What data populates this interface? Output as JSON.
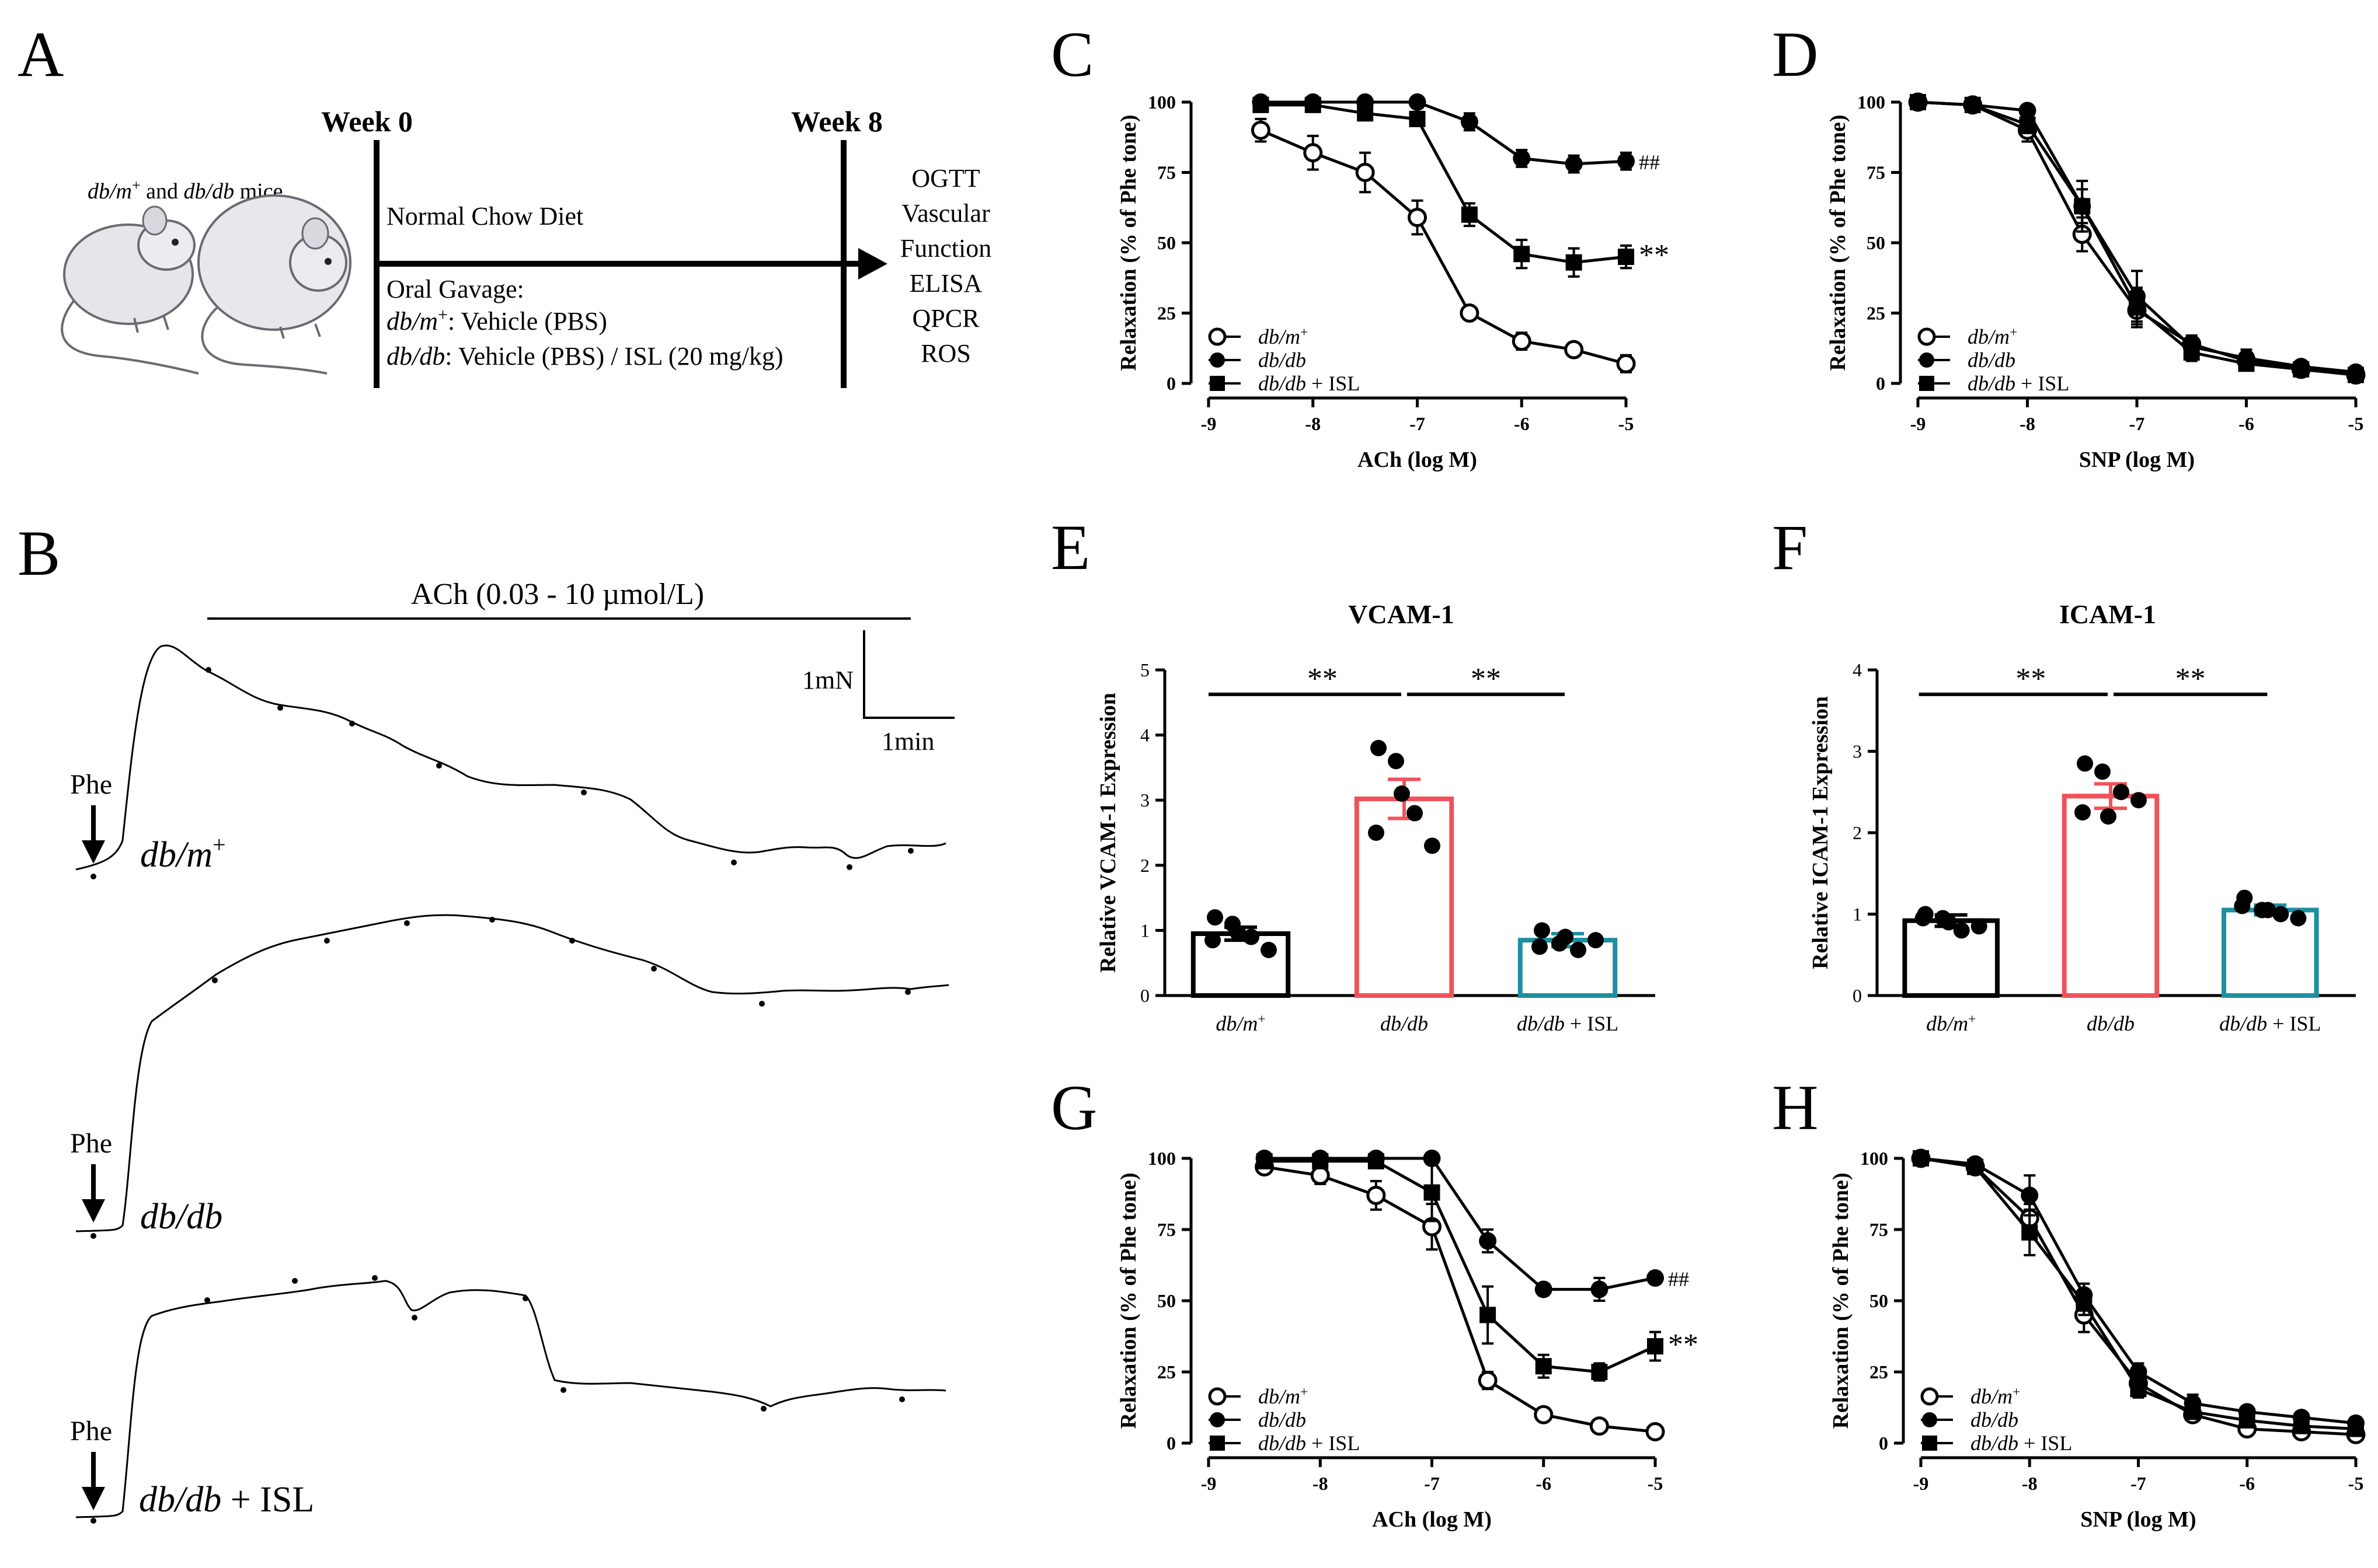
{
  "panels": {
    "A": {
      "letter": "A",
      "mice_label_a": "db/m",
      "mice_label_a_sup": "+",
      "mice_label_and": " and ",
      "mice_label_b": "db/db",
      "mice_label_end": " mice",
      "week0": "Week 0",
      "week8": "Week 8",
      "diet": "Normal Chow Diet",
      "gavage": "Oral Gavage:",
      "line1_italic": "db/m",
      "line1_sup": "+",
      "line1_rest": ": Vehicle (PBS)",
      "line2_italic": "db/db",
      "line2_rest": ": Vehicle (PBS) / ISL (20 mg/kg)",
      "outcomes": [
        "OGTT",
        "Vascular",
        "Function",
        "ELISA",
        "QPCR",
        "ROS"
      ]
    },
    "B": {
      "letter": "B",
      "ach_label": "ACh (0.03 - 10 µmol/L)",
      "scale_force": "1mN",
      "scale_time": "1min",
      "phe": "Phe",
      "trace1_a": "db/m",
      "trace1_sup": "+",
      "trace2": "db/db",
      "trace3_a": "db/db",
      "trace3_b": " + ISL"
    },
    "C": {
      "letter": "C"
    },
    "D": {
      "letter": "D"
    },
    "E": {
      "letter": "E"
    },
    "F": {
      "letter": "F"
    },
    "G": {
      "letter": "G"
    },
    "H": {
      "letter": "H"
    }
  },
  "legend": {
    "s1_italic": "db/m",
    "s1_sup": "+",
    "s2_italic": "db/db",
    "s3_italic": "db/db",
    "s3_rest": " + ISL"
  },
  "chart_data": [
    {
      "id": "C",
      "type": "line",
      "xlabel": "ACh (log M)",
      "ylabel": "Relaxation (% of Phe tone)",
      "xlim": [
        -9,
        -5
      ],
      "ylim": [
        0,
        100
      ],
      "xticks": [
        "-9",
        "-8",
        "-7",
        "-6",
        "-5"
      ],
      "yticks": [
        "0",
        "25",
        "50",
        "75",
        "100"
      ],
      "x": [
        -8.5,
        -8,
        -7.5,
        -7,
        -6.5,
        -6,
        -5.5,
        -5
      ],
      "series": [
        {
          "name": "db/m+",
          "marker": "open-circle",
          "values": [
            90,
            82,
            75,
            59,
            25,
            15,
            12,
            7
          ],
          "err": [
            4,
            6,
            7,
            6,
            2,
            3,
            2,
            3
          ]
        },
        {
          "name": "db/db",
          "marker": "filled-circle",
          "values": [
            100,
            100,
            100,
            100,
            93,
            80,
            78,
            79
          ],
          "err": [
            1,
            1,
            1,
            1,
            3,
            3,
            3,
            3
          ],
          "annotation": "##"
        },
        {
          "name": "db/db + ISL",
          "marker": "filled-square",
          "values": [
            99,
            99,
            96,
            94,
            60,
            46,
            43,
            45
          ],
          "err": [
            1,
            1,
            2,
            2,
            4,
            5,
            5,
            4
          ],
          "annotation": "**"
        }
      ]
    },
    {
      "id": "D",
      "type": "line",
      "xlabel": "SNP (log M)",
      "ylabel": "Relaxation (% of Phe tone)",
      "xlim": [
        -9,
        -5
      ],
      "ylim": [
        0,
        100
      ],
      "xticks": [
        "-9",
        "-8",
        "-7",
        "-6",
        "-5"
      ],
      "yticks": [
        "0",
        "25",
        "50",
        "75",
        "100"
      ],
      "x": [
        -9,
        -8.5,
        -8,
        -7.5,
        -7,
        -6.5,
        -6,
        -5.5,
        -5
      ],
      "series": [
        {
          "name": "db/m+",
          "marker": "open-circle",
          "values": [
            100,
            99,
            90,
            53,
            26,
            14,
            8,
            5,
            3
          ],
          "err": [
            2,
            2,
            4,
            6,
            5,
            3,
            3,
            2,
            2
          ]
        },
        {
          "name": "db/db",
          "marker": "filled-circle",
          "values": [
            100,
            99,
            97,
            63,
            31,
            13,
            9,
            6,
            4
          ],
          "err": [
            2,
            2,
            2,
            9,
            9,
            3,
            3,
            2,
            2
          ]
        },
        {
          "name": "db/db + ISL",
          "marker": "filled-square",
          "values": [
            100,
            99,
            92,
            63,
            27,
            11,
            7,
            5,
            3
          ],
          "err": [
            2,
            2,
            3,
            6,
            7,
            3,
            2,
            2,
            2
          ]
        }
      ]
    },
    {
      "id": "E",
      "type": "bar",
      "title": "VCAM-1",
      "ylabel": "Relative VCAM-1 Expression",
      "ylim": [
        0,
        5
      ],
      "yticks": [
        "0",
        "1",
        "2",
        "3",
        "4",
        "5"
      ],
      "categories": [
        "db/m+",
        "db/db",
        "db/db + ISL"
      ],
      "values": [
        0.95,
        3.02,
        0.85
      ],
      "err": [
        0.1,
        0.3,
        0.1
      ],
      "points": [
        [
          1.2,
          1.1,
          0.9,
          0.7,
          0.95,
          0.85
        ],
        [
          3.8,
          3.6,
          2.8,
          2.3,
          3.1,
          2.5
        ],
        [
          1.0,
          0.8,
          0.7,
          0.85,
          0.9,
          0.75
        ]
      ],
      "colors": [
        "#000000",
        "#f0525a",
        "#1d8fa0"
      ],
      "significance": [
        "**",
        "**"
      ]
    },
    {
      "id": "F",
      "type": "bar",
      "title": "ICAM-1",
      "ylabel": "Relative ICAM-1 Expression",
      "ylim": [
        0,
        4
      ],
      "yticks": [
        "0",
        "1",
        "2",
        "3",
        "4"
      ],
      "categories": [
        "db/m+",
        "db/db",
        "db/db + ISL"
      ],
      "values": [
        0.92,
        2.45,
        1.05
      ],
      "err": [
        0.07,
        0.15,
        0.06
      ],
      "points": [
        [
          1.0,
          0.95,
          0.8,
          0.85,
          0.9,
          0.95
        ],
        [
          2.85,
          2.75,
          2.5,
          2.4,
          2.2,
          2.25
        ],
        [
          1.2,
          1.05,
          1.0,
          0.95,
          1.05,
          1.1
        ]
      ],
      "colors": [
        "#000000",
        "#f0525a",
        "#1d8fa0"
      ],
      "significance": [
        "**",
        "**"
      ]
    },
    {
      "id": "G",
      "type": "line",
      "xlabel": "ACh (log M)",
      "ylabel": "Relaxation (% of Phe tone)",
      "xlim": [
        -9,
        -5
      ],
      "ylim": [
        0,
        100
      ],
      "xticks": [
        "-9",
        "-8",
        "-7",
        "-6",
        "-5"
      ],
      "yticks": [
        "0",
        "25",
        "50",
        "75",
        "100"
      ],
      "x": [
        -8.5,
        -8,
        -7.5,
        -7,
        -6.5,
        -6,
        -5.5,
        -5
      ],
      "series": [
        {
          "name": "db/m+",
          "marker": "open-circle",
          "values": [
            97,
            94,
            87,
            76,
            22,
            10,
            6,
            4
          ],
          "err": [
            2,
            3,
            5,
            8,
            3,
            2,
            1,
            1
          ]
        },
        {
          "name": "db/db",
          "marker": "filled-circle",
          "values": [
            100,
            100,
            100,
            100,
            71,
            54,
            54,
            58
          ],
          "err": [
            1,
            1,
            1,
            1,
            4,
            2,
            4,
            2
          ],
          "annotation": "##"
        },
        {
          "name": "db/db + ISL",
          "marker": "filled-square",
          "values": [
            99,
            99,
            99,
            88,
            45,
            27,
            25,
            34
          ],
          "err": [
            1,
            1,
            1,
            10,
            10,
            4,
            3,
            5
          ],
          "annotation": "**"
        }
      ]
    },
    {
      "id": "H",
      "type": "line",
      "xlabel": "SNP (log M)",
      "ylabel": "Relaxation (% of Phe tone)",
      "xlim": [
        -9,
        -5
      ],
      "ylim": [
        0,
        100
      ],
      "xticks": [
        "-9",
        "-8",
        "-7",
        "-6",
        "-5"
      ],
      "yticks": [
        "0",
        "25",
        "50",
        "75",
        "100"
      ],
      "x": [
        -9,
        -8.5,
        -8,
        -7.5,
        -7,
        -6.5,
        -6,
        -5.5,
        -5
      ],
      "series": [
        {
          "name": "db/m+",
          "marker": "open-circle",
          "values": [
            100,
            97,
            79,
            45,
            21,
            10,
            5,
            4,
            3
          ],
          "err": [
            2,
            2,
            5,
            6,
            3,
            2,
            2,
            1,
            1
          ]
        },
        {
          "name": "db/db",
          "marker": "filled-circle",
          "values": [
            100,
            98,
            87,
            52,
            25,
            14,
            11,
            9,
            7
          ],
          "err": [
            2,
            2,
            7,
            4,
            3,
            3,
            2,
            2,
            2
          ]
        },
        {
          "name": "db/db + ISL",
          "marker": "filled-square",
          "values": [
            100,
            97,
            74,
            49,
            19,
            11,
            8,
            6,
            5
          ],
          "err": [
            2,
            2,
            8,
            4,
            3,
            2,
            2,
            2,
            2
          ]
        }
      ]
    }
  ]
}
